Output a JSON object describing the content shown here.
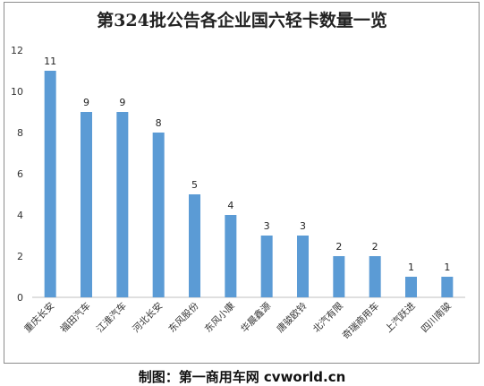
{
  "chart_data": {
    "type": "bar",
    "title": "第324批公告各企业国六轻卡数量一览",
    "categories": [
      "重庆长安",
      "福田汽车",
      "江淮汽车",
      "河北长安",
      "东风股份",
      "东风小康",
      "华晨鑫源",
      "唐骏欧铃",
      "北汽有限",
      "奇瑞商用车",
      "上汽跃进",
      "四川南骏"
    ],
    "values": [
      11,
      9,
      9,
      8,
      5,
      4,
      3,
      3,
      2,
      2,
      1,
      1
    ],
    "ylim": [
      0,
      12
    ],
    "yticks": [
      0,
      2,
      4,
      6,
      8,
      10,
      12
    ],
    "grid": false,
    "legend": "none",
    "bar_color": "#5b9bd5",
    "axis_color": "#bfbfbf"
  },
  "credit": "制图：第一商用车网 cvworld.cn"
}
